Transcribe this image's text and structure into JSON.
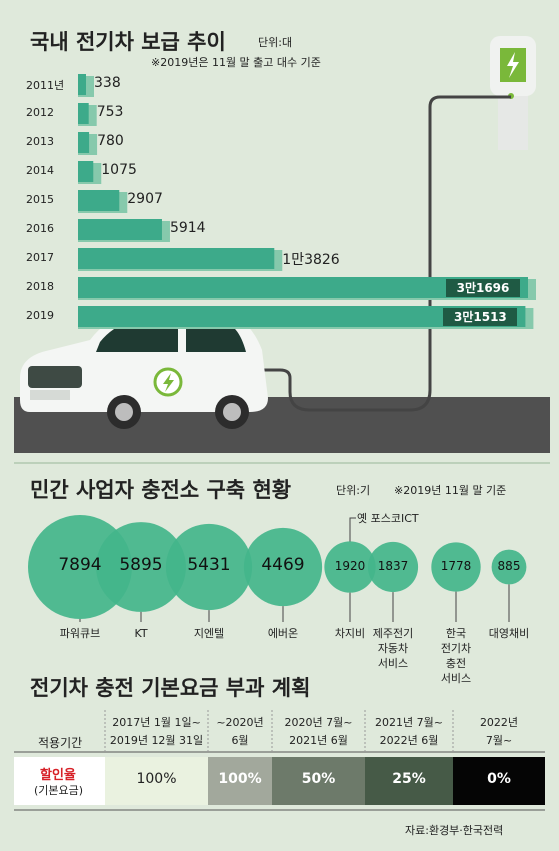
{
  "chart_data": [
    {
      "type": "bar",
      "title": "국내 전기차 보급 추이",
      "unit": "단위:대",
      "note": "※2019년은 11월 말 출고 대수 기준",
      "categories": [
        "2011년",
        "2012",
        "2013",
        "2014",
        "2015",
        "2016",
        "2017",
        "2018",
        "2019"
      ],
      "values": [
        338,
        753,
        780,
        1075,
        2907,
        5914,
        13826,
        31696,
        31513
      ],
      "value_labels": [
        "338",
        "753",
        "780",
        "1075",
        "2907",
        "5914",
        "1만3826",
        "3만1696",
        "3만1513"
      ],
      "colors": {
        "bar": "#3daa8a",
        "bar_shadow": "#86c9ac",
        "label_box": "#1f5a44"
      }
    },
    {
      "type": "bubble",
      "title": "민간 사업자 충전소 구축 현황",
      "unit": "단위:기",
      "note": "※2019년 11월 말 기준",
      "callout": "옛 포스코ICT",
      "categories": [
        "파워큐브",
        "KT",
        "지엔텔",
        "에버온",
        "차지비",
        "제주전기\n자동차\n서비스",
        "한국\n전기차\n충전\n서비스",
        "대영채비"
      ],
      "values": [
        7894,
        5895,
        5431,
        4469,
        1920,
        1837,
        1778,
        885
      ],
      "value_labels": [
        "7894",
        "5895",
        "5431",
        "4469",
        "1920",
        "1837",
        "1778",
        "885"
      ],
      "colors": {
        "bubble": "#43b58b",
        "overlap": "#1f9a72"
      }
    },
    {
      "type": "table",
      "title": "전기차 충전 기본요금 부과 계획",
      "row_header_label": "적용기간",
      "rate_label_main": "할인율",
      "rate_label_sub": "(기본요금)",
      "periods": [
        "2017년 1월 1일~\n2019년 12월 31일",
        "~2020년\n6월",
        "2020년 7월~\n2021년 6월",
        "2021년 7월~\n2022년 6월",
        "2022년\n7월~"
      ],
      "rates": [
        "100%",
        "100%",
        "50%",
        "25%",
        "0%"
      ],
      "colors": {
        "cells": [
          "#eaf2e0",
          "#a2a89c",
          "#6d7a6a",
          "#465a47",
          "#050505"
        ],
        "rate_label": "#d72027"
      }
    }
  ],
  "source": "자료:환경부·한국전력"
}
